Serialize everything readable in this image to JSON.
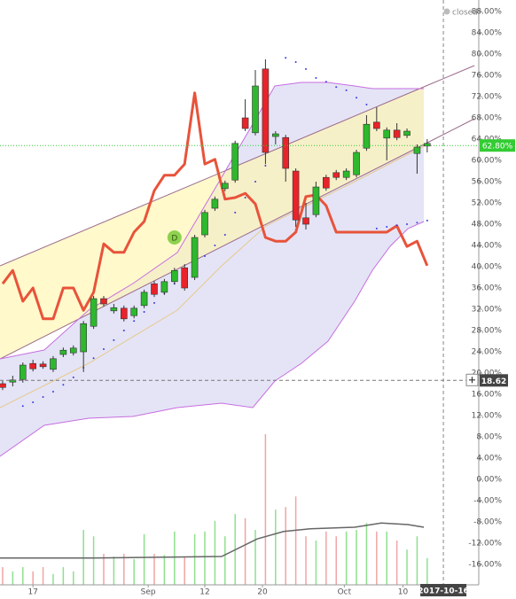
{
  "chart_data": {
    "type": "candlestick",
    "status": "closed",
    "x": [
      0,
      1,
      2,
      3,
      4,
      5,
      6,
      7,
      8,
      9,
      10,
      11,
      12,
      13,
      14,
      15,
      16,
      17,
      18,
      19,
      20,
      21,
      22,
      23,
      24,
      25,
      26,
      27,
      28,
      29,
      30,
      31,
      32,
      33,
      34,
      35,
      36,
      37,
      38,
      39,
      40,
      41,
      42
    ],
    "open": [
      18.0,
      18.3,
      18.8,
      21.8,
      21.7,
      20.7,
      23.5,
      23.8,
      24.0,
      28.8,
      34.0,
      31.7,
      32.2,
      30.8,
      32.7,
      36.8,
      35.2,
      37.2,
      39.8,
      38.0,
      46.0,
      51.0,
      54.7,
      56.3,
      68.0,
      65.2,
      77.2,
      64.5,
      64.3,
      58.0,
      49.2,
      49.8,
      56.8,
      57.7,
      56.8,
      57.3,
      62.3,
      67.2,
      64.2,
      65.7,
      64.7,
      61.3,
      62.7
    ],
    "high": [
      18.5,
      19.5,
      22.0,
      22.5,
      22.2,
      23.2,
      24.8,
      25.2,
      29.8,
      34.5,
      34.5,
      33.0,
      32.7,
      32.7,
      35.7,
      37.3,
      37.7,
      39.8,
      40.5,
      46.0,
      50.7,
      53.2,
      56.2,
      63.7,
      71.5,
      77.0,
      79.0,
      65.5,
      64.8,
      58.5,
      52.0,
      56.0,
      57.3,
      58.2,
      58.5,
      62.0,
      68.5,
      70.0,
      66.2,
      67.0,
      66.0,
      63.0,
      64.0
    ],
    "low": [
      16.8,
      17.5,
      18.2,
      20.3,
      20.8,
      20.2,
      23.0,
      23.3,
      20.2,
      28.3,
      32.5,
      31.2,
      29.7,
      30.3,
      32.2,
      34.3,
      34.7,
      36.7,
      35.5,
      37.5,
      45.5,
      50.5,
      54.2,
      55.8,
      65.5,
      64.7,
      59.3,
      63.0,
      56.0,
      47.5,
      47.0,
      49.3,
      54.3,
      56.3,
      56.3,
      56.8,
      61.8,
      65.5,
      60.0,
      63.8,
      64.2,
      57.5,
      61.5
    ],
    "close": [
      17.3,
      18.7,
      21.5,
      20.8,
      21.2,
      22.7,
      24.3,
      24.7,
      29.3,
      34.0,
      33.0,
      32.3,
      30.2,
      32.2,
      35.2,
      34.8,
      37.2,
      39.3,
      36.0,
      45.5,
      50.2,
      52.7,
      55.7,
      63.2,
      66.0,
      74.0,
      61.5,
      65.0,
      58.5,
      48.8,
      48.0,
      55.0,
      54.8,
      56.8,
      58.0,
      61.5,
      66.8,
      66.0,
      65.7,
      64.3,
      65.5,
      62.5,
      63.2
    ],
    "up_color": "#2db82d",
    "down_color": "#e8232a",
    "volume": [
      -16.5,
      -17.3,
      -16.5,
      -17.3,
      -16.5,
      -17.8,
      -16.5,
      -17.3,
      -9.5,
      -10.7,
      -14.0,
      -14.5,
      -14.0,
      -15.0,
      -10.3,
      -14.0,
      -14.2,
      -9.8,
      -14.5,
      -10.3,
      -9.8,
      -7.8,
      -10.7,
      -6.5,
      -7.3,
      -9.5,
      8.5,
      -5.7,
      -5.2,
      -3.2,
      -10.7,
      -11.5,
      -9.8,
      -10.7,
      -9.8,
      -9.5,
      -8.2,
      -9.8,
      -9.8,
      -11.5,
      -13.2,
      -10.7,
      -14.8
    ],
    "volume_up_color": "#8ee08e",
    "volume_down_color": "#f2a4a4",
    "volume_ma": {
      "x": [
        -0.26,
        8.51,
        17.28,
        21.67,
        25.18,
        27.81,
        30.44,
        34.82,
        37.46,
        40.09,
        41.67
      ],
      "values": [
        -14.8,
        -14.8,
        -14.6,
        -14.5,
        -11.2,
        -9.8,
        -9.3,
        -9.0,
        -8.2,
        -8.5,
        -9.0
      ],
      "color": "#666666"
    },
    "comparison": {
      "values": [
        36.8,
        39.3,
        33.5,
        36.0,
        30.2,
        30.2,
        36.0,
        36.0,
        31.8,
        35.2,
        44.3,
        42.7,
        42.7,
        46.5,
        48.5,
        54.3,
        57.2,
        57.2,
        59.3,
        72.7,
        59.3,
        60.2,
        52.7,
        53.0,
        53.8,
        51.8,
        45.5,
        44.8,
        44.8,
        46.5,
        53.2,
        53.5,
        51.5,
        46.5,
        46.5,
        46.5,
        46.5,
        46.5,
        46.5,
        47.7,
        43.8,
        44.8,
        40.2
      ],
      "color": "#e8533a"
    },
    "bollinger": {
      "x": [
        -0.26,
        4.12,
        8.51,
        12.89,
        17.28,
        21.67,
        24.74,
        26.93,
        29.56,
        32.19,
        34.82,
        36.58,
        38.33,
        40.09,
        41.67
      ],
      "upper": [
        22.67,
        24.33,
        31.83,
        36.83,
        42.67,
        56.83,
        66.83,
        74.0,
        74.67,
        74.67,
        74.0,
        73.5,
        73.5,
        73.5,
        73.5
      ],
      "lower": [
        4.33,
        10.17,
        11.5,
        11.83,
        13.5,
        14.33,
        13.5,
        18.5,
        21.83,
        26.0,
        33.5,
        39.33,
        43.83,
        47.17,
        48.5
      ],
      "color": "#c86ee0",
      "fill": "#d9d9f2"
    },
    "moving_average": {
      "x": [
        -0.26,
        8.51,
        17.28,
        21.67,
        26.05,
        30.44,
        34.82,
        41.67
      ],
      "values": [
        13.5,
        21.83,
        31.83,
        40.17,
        47.67,
        51.83,
        56.0,
        62.67
      ],
      "color": "#e6c98c"
    },
    "sar": {
      "x": [
        2,
        3,
        4,
        5,
        6,
        7,
        8,
        9,
        10,
        11,
        12,
        13,
        14,
        15,
        16,
        17,
        18,
        19,
        20,
        21,
        22,
        23,
        24,
        25,
        26,
        28,
        29,
        30,
        31,
        32,
        33,
        34,
        35,
        36,
        37,
        38,
        39,
        40,
        41,
        42
      ],
      "values": [
        13.8,
        14.5,
        15.5,
        16.5,
        17.8,
        19.2,
        21.0,
        22.8,
        24.5,
        26.2,
        28.0,
        29.8,
        31.5,
        33.2,
        35.0,
        36.8,
        38.5,
        40.3,
        42.0,
        44.0,
        46.0,
        50.2,
        53.0,
        56.0,
        59.0,
        79.3,
        78.5,
        77.2,
        75.5,
        74.8,
        73.8,
        73.2,
        71.8,
        70.5,
        47.2,
        47.5,
        47.8,
        48.0,
        48.3,
        48.7
      ],
      "color": "#3a3ae0"
    },
    "channel": {
      "x": [
        -0.26,
        41.67,
        46.67
      ],
      "upper": [
        40.17,
        73.83,
        77.83
      ],
      "lower": [
        22.67,
        63.0,
        67.83
      ],
      "color": "#9b6b8a",
      "fill": "#fff6b0"
    },
    "event": {
      "x": 17,
      "value": 45.5,
      "label": "D",
      "color": "#8fd14f"
    },
    "last_price": {
      "value": 62.8,
      "label": "62.80%",
      "color": "#33cc33"
    },
    "crosshair": {
      "y": {
        "value": 18.62,
        "label": "18.62"
      },
      "x": {
        "value": 43.6,
        "label": "2017-10-16"
      }
    },
    "xlim": [
      -0.26,
      47.1
    ],
    "ylim": [
      -19.83,
      90.17
    ],
    "xticks": [
      {
        "value": 3,
        "label": "17"
      },
      {
        "value": 14.4,
        "label": "Sep"
      },
      {
        "value": 20,
        "label": "12"
      },
      {
        "value": 25.7,
        "label": "20"
      },
      {
        "value": 33.8,
        "label": "Oct"
      },
      {
        "value": 39.6,
        "label": "10"
      }
    ],
    "yticks": [
      {
        "value": 88,
        "label": "88.00%"
      },
      {
        "value": 84,
        "label": "84.00%"
      },
      {
        "value": 80,
        "label": "80.00%"
      },
      {
        "value": 76,
        "label": "76.00%"
      },
      {
        "value": 72,
        "label": "72.00%"
      },
      {
        "value": 68,
        "label": "68.00%"
      },
      {
        "value": 64,
        "label": "64.00%"
      },
      {
        "value": 60,
        "label": "60.00%"
      },
      {
        "value": 56,
        "label": "56.00%"
      },
      {
        "value": 52,
        "label": "52.00%"
      },
      {
        "value": 48,
        "label": "48.00%"
      },
      {
        "value": 44,
        "label": "44.00%"
      },
      {
        "value": 40,
        "label": "40.00%"
      },
      {
        "value": 36,
        "label": "36.00%"
      },
      {
        "value": 32,
        "label": "32.00%"
      },
      {
        "value": 28,
        "label": "28.00%"
      },
      {
        "value": 24,
        "label": "24.00%"
      },
      {
        "value": 20,
        "label": "20.00%"
      },
      {
        "value": 16,
        "label": "16.00%"
      },
      {
        "value": 12,
        "label": "12.00%"
      },
      {
        "value": 8,
        "label": "8.00%"
      },
      {
        "value": 4,
        "label": "4.00%"
      },
      {
        "value": 0,
        "label": "0.00%"
      },
      {
        "value": -4,
        "label": "-4.00%"
      },
      {
        "value": -8,
        "label": "-8.00%"
      },
      {
        "value": -12,
        "label": "-12.00%"
      },
      {
        "value": -16,
        "label": "-16.00%"
      }
    ]
  }
}
